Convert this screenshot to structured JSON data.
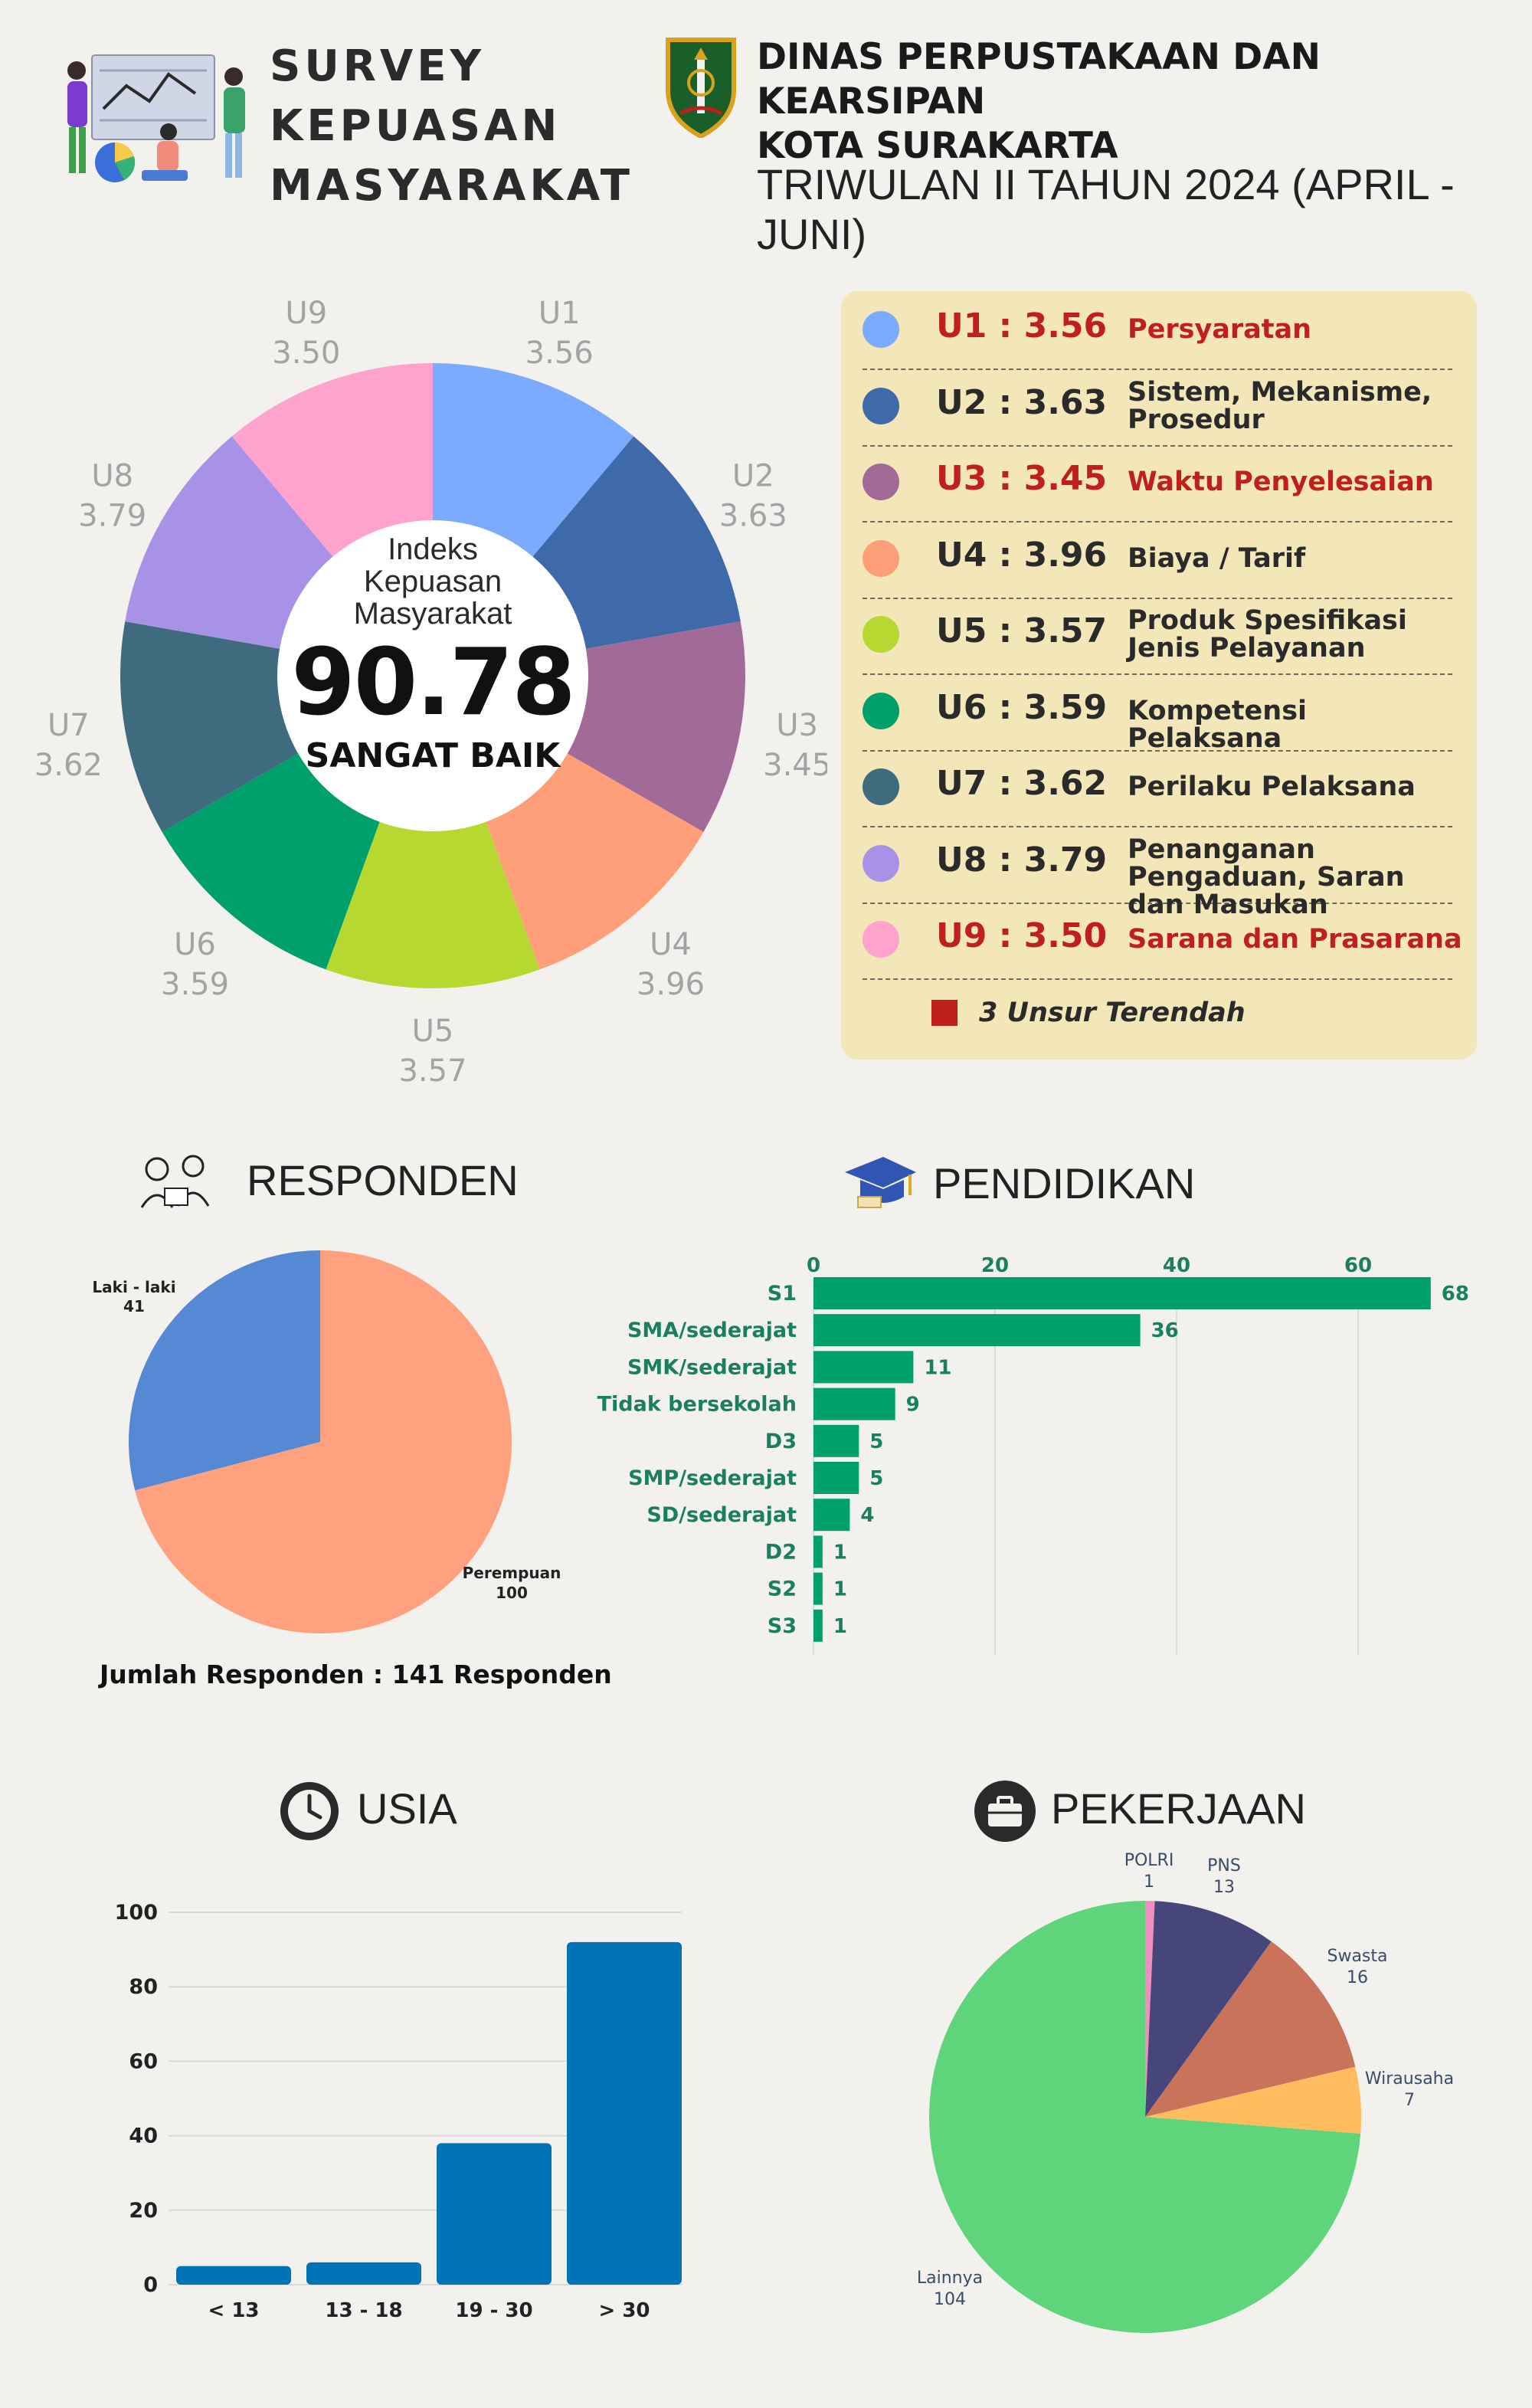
{
  "header": {
    "title_lines": [
      "SURVEY",
      "KEPUASAN",
      "MASYARAKAT"
    ],
    "org_lines": [
      "DINAS PERPUSTAKAAN DAN KEARSIPAN",
      "KOTA SURAKARTA"
    ],
    "period": "TRIWULAN II TAHUN 2024 (APRIL - JUNI)"
  },
  "index": {
    "label_lines": [
      "Indeks",
      "Kepuasan",
      "Masyarakat"
    ],
    "value": "90.78",
    "rating": "SANGAT BAIK"
  },
  "legend": {
    "items": [
      {
        "code": "U1 : 3.56",
        "desc": "Persyaratan",
        "color": "#7aabff",
        "lowest": true
      },
      {
        "code": "U2 : 3.63",
        "desc": "Sistem, Mekanisme, Prosedur",
        "color": "#3e6aaa",
        "lowest": false
      },
      {
        "code": "U3 : 3.45",
        "desc": "Waktu Penyelesaian",
        "color": "#a26b97",
        "lowest": true
      },
      {
        "code": "U4 : 3.96",
        "desc": "Biaya / Tarif",
        "color": "#ff9f7a",
        "lowest": false
      },
      {
        "code": "U5 : 3.57",
        "desc": "Produk Spesifikasi Jenis Pelayanan",
        "color": "#b7d831",
        "lowest": false
      },
      {
        "code": "U6 : 3.59",
        "desc": "Kompetensi Pelaksana",
        "color": "#00a06c",
        "lowest": false
      },
      {
        "code": "U7 : 3.62",
        "desc": "Perilaku Pelaksana",
        "color": "#3e6b7d",
        "lowest": false
      },
      {
        "code": "U8 : 3.79",
        "desc": "Penanganan Pengaduan, Saran dan Masukan",
        "color": "#a892e8",
        "lowest": false
      },
      {
        "code": "U9 : 3.50",
        "desc": "Sarana dan Prasarana",
        "color": "#ffa2ce",
        "lowest": true
      }
    ],
    "note": "3 Unsur Terendah",
    "note_color": "#c0201b"
  },
  "sections": {
    "responden": "RESPONDEN",
    "pendidikan": "PENDIDIKAN",
    "usia": "USIA",
    "pekerjaan": "PEKERJAAN"
  },
  "responden_total": "Jumlah Responden : 141 Responden",
  "chart_data": [
    {
      "type": "pie",
      "name": "donut-unsur",
      "categories": [
        "U1",
        "U2",
        "U3",
        "U4",
        "U5",
        "U6",
        "U7",
        "U8",
        "U9"
      ],
      "values": [
        3.56,
        3.63,
        3.45,
        3.96,
        3.57,
        3.59,
        3.62,
        3.79,
        3.5
      ],
      "value_labels": [
        "3.56",
        "3.63",
        "3.45",
        "3.96",
        "3.57",
        "3.59",
        "3.62",
        "3.79",
        "3.50"
      ],
      "colors": [
        "#7aabff",
        "#3e6aaa",
        "#a26b97",
        "#ff9f7a",
        "#b7d831",
        "#00a06c",
        "#3e6b7d",
        "#a892e8",
        "#ffa2ce"
      ]
    },
    {
      "type": "pie",
      "name": "responden",
      "categories": [
        "Laki - laki",
        "Perempuan"
      ],
      "values": [
        41,
        100
      ],
      "colors": [
        "#5689d3",
        "#ffa17e"
      ]
    },
    {
      "type": "bar",
      "name": "pendidikan",
      "orientation": "horizontal",
      "categories": [
        "S1",
        "SMA/sederajat",
        "SMK/sederajat",
        "Tidak bersekolah",
        "D3",
        "SMP/sederajat",
        "SD/sederajat",
        "D2",
        "S2",
        "S3"
      ],
      "values": [
        68,
        36,
        11,
        9,
        5,
        5,
        4,
        1,
        1,
        1
      ],
      "xlim": [
        0,
        68
      ],
      "xticks": [
        0,
        20,
        40,
        60
      ],
      "color": "#00a06c"
    },
    {
      "type": "bar",
      "name": "usia",
      "categories": [
        "< 13",
        "13 - 18",
        "19 - 30",
        "> 30"
      ],
      "values": [
        5,
        6,
        38,
        92
      ],
      "ylim": [
        0,
        100
      ],
      "yticks": [
        0,
        20,
        40,
        60,
        80,
        100
      ],
      "color": "#0074b5"
    },
    {
      "type": "pie",
      "name": "pekerjaan",
      "categories": [
        "POLRI",
        "PNS",
        "Swasta",
        "Wirausaha",
        "Lainnya"
      ],
      "values": [
        1,
        13,
        16,
        7,
        104
      ],
      "colors": [
        "#f08fbf",
        "#47467a",
        "#c9735a",
        "#ffbd5f",
        "#5ed57a"
      ]
    }
  ]
}
